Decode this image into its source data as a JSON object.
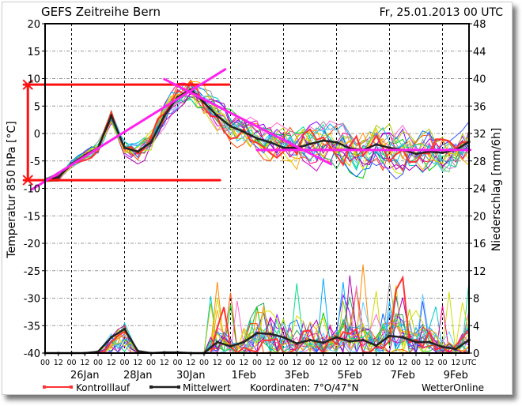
{
  "chart_data": {
    "type": "line",
    "title": "GEFS Zeitreihe Bern",
    "run_time": "Fr, 25.01.2013 00 UTC",
    "ylabel_left": "Temperatur 850 hPa [°C]",
    "ylabel_right": "Niederschlag [mm/6h]",
    "ylim_left": [
      -40,
      20
    ],
    "ylim_right": [
      0,
      48
    ],
    "yticks_left": [
      "20",
      "15",
      "10",
      "5",
      "0",
      "-5",
      "-10",
      "-15",
      "-20",
      "-25",
      "-30",
      "-35",
      "-40"
    ],
    "yticks_right": [
      "48",
      "44",
      "40",
      "36",
      "32",
      "28",
      "24",
      "20",
      "16",
      "12",
      "8",
      "4",
      "0"
    ],
    "x_hour_labels": [
      "00",
      "12",
      "00",
      "12",
      "00",
      "12",
      "00",
      "12",
      "00",
      "12",
      "00",
      "12",
      "00",
      "12",
      "00",
      "12",
      "00",
      "12",
      "00",
      "12",
      "00",
      "12",
      "00",
      "12",
      "00",
      "12",
      "00",
      "12",
      "00",
      "12",
      "00",
      "12"
    ],
    "x_end_label": "UTC",
    "x_date_labels": [
      "26Jan",
      "28Jan",
      "30Jan",
      "1Feb",
      "3Feb",
      "5Feb",
      "7Feb",
      "9Feb"
    ],
    "x_unit": "days since 25.01.2013 00 UTC, 12h steps",
    "grid": true,
    "ensemble_members": 20,
    "series": [
      {
        "name": "Mittelwert",
        "kind": "temperature",
        "color": "#222222",
        "values": [
          -8.5,
          -8,
          -5.5,
          -4,
          -2.6,
          3.2,
          -2.6,
          -3.3,
          -1.6,
          3.2,
          6.6,
          8,
          5.6,
          3.2,
          1.3,
          0.3,
          -0.9,
          -1.6,
          -2.6,
          -2.6,
          -1.9,
          -1.3,
          -1.6,
          -2.7,
          -3,
          -2,
          -2.6,
          -3,
          -3.7,
          -3.3,
          -3.5,
          -3,
          -1.5
        ]
      },
      {
        "name": "Mittelwert",
        "kind": "precipitation",
        "color": "#222222",
        "values": [
          0,
          0,
          0,
          0,
          0.2,
          2.3,
          3.5,
          0.3,
          0,
          0.1,
          0.1,
          0,
          0,
          1.6,
          1,
          1.6,
          2.9,
          2.8,
          2.3,
          1.4,
          1.9,
          1.5,
          2.3,
          1.7,
          1.9,
          1.1,
          2.5,
          2.3,
          1.6,
          1.6,
          0.9,
          0.6,
          1.9
        ]
      }
    ],
    "legend": [
      {
        "label": "Kontrolllauf",
        "color": "#ff3333"
      },
      {
        "label": "Mittelwert",
        "color": "#222222"
      }
    ],
    "coordinates": "Koordinaten: 7°O/47°N",
    "source": "WetterOnline",
    "annotations": [
      {
        "color": "#ff1010",
        "from": [
          -0.8,
          8.9
        ],
        "to": [
          6.95,
          8.9
        ]
      },
      {
        "color": "#ff1010",
        "from": [
          -0.8,
          -8.5
        ],
        "to": [
          6.6,
          -8.5
        ]
      },
      {
        "color": "#ff1010",
        "from": [
          -0.65,
          8.9
        ],
        "to": [
          -0.65,
          -8.5
        ]
      },
      {
        "color": "#ff22ee",
        "from": [
          -0.5,
          -10.2
        ],
        "to": [
          6.8,
          11.7
        ]
      },
      {
        "color": "#ff22ee",
        "from": [
          4.5,
          9.9
        ],
        "to": [
          10.8,
          -5.6
        ]
      },
      {
        "color": "#ff22ee",
        "from": [
          8.0,
          -3
        ],
        "to": [
          16.05,
          -3
        ]
      }
    ]
  }
}
